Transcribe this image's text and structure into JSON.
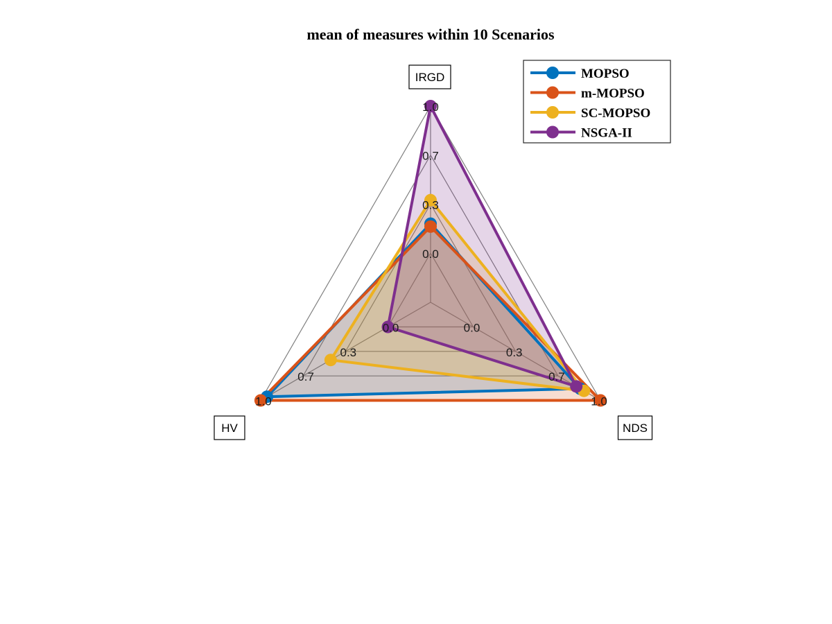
{
  "chart_data": {
    "type": "radar",
    "title": "mean of measures within 10 Scenarios",
    "axes": [
      "IRGD",
      "NDS",
      "HV"
    ],
    "range": [
      0,
      1
    ],
    "tick_labels": [
      "0.0",
      "0.3",
      "0.7",
      "1.0"
    ],
    "series": [
      {
        "name": "MOPSO",
        "color": "#0072BD",
        "values": [
          0.2,
          0.84,
          0.95
        ]
      },
      {
        "name": "m-MOPSO",
        "color": "#D95319",
        "values": [
          0.18,
          1.0,
          1.0
        ]
      },
      {
        "name": "SC-MOPSO",
        "color": "#EDB120",
        "values": [
          0.36,
          0.87,
          0.45
        ]
      },
      {
        "name": "NSGA-II",
        "color": "#7E2F8E",
        "values": [
          1.0,
          0.81,
          0.0
        ]
      }
    ],
    "legend_position": "top-right",
    "grid": true
  }
}
